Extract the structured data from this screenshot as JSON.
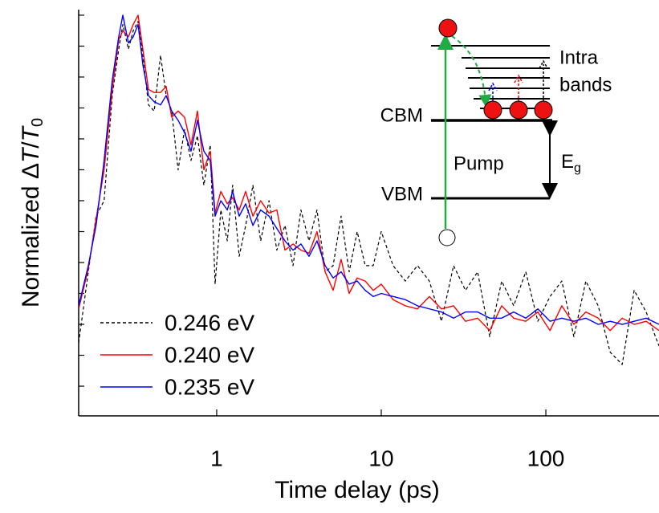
{
  "chart_data": {
    "type": "line",
    "xlabel": "Time delay (ps)",
    "ylabel": {
      "text": "Normalized Δ",
      "t1": "T",
      "slash": "/",
      "t2": "T",
      "sub": "0"
    },
    "xscale": "log",
    "xlim": [
      0.145,
      487
    ],
    "xticks": [
      1,
      10,
      100
    ],
    "ylim": [
      -0.296,
      1.018
    ],
    "yticks": [
      -0.2,
      -0.1,
      0,
      0.1,
      0.2,
      0.3,
      0.4,
      0.5,
      0.6,
      0.7,
      0.8,
      0.9,
      1.0
    ],
    "legend": "lower left",
    "x": [
      0.145,
      0.166,
      0.185,
      0.207,
      0.232,
      0.254,
      0.269,
      0.291,
      0.311,
      0.333,
      0.356,
      0.385,
      0.417,
      0.456,
      0.493,
      0.533,
      0.583,
      0.638,
      0.698,
      0.764,
      0.836,
      0.914,
      0.978,
      1.06,
      1.16,
      1.25,
      1.37,
      1.5,
      1.66,
      1.85,
      2.08,
      2.32,
      2.6,
      2.91,
      3.25,
      3.64,
      4.07,
      4.56,
      5.1,
      5.7,
      6.38,
      7.14,
      7.99,
      8.94,
      10.0,
      11.8,
      14.0,
      16.6,
      19.6,
      23.2,
      27.5,
      32.5,
      38.5,
      45.6,
      53.9,
      63.8,
      75.5,
      89.4,
      106,
      125,
      148,
      175,
      208,
      246,
      291,
      344,
      407,
      487
    ],
    "series": [
      {
        "name": "0.246 eV",
        "color": "#000000",
        "linestyle": "dashed",
        "values": [
          -0.06,
          0.17,
          0.35,
          0.4,
          0.74,
          0.89,
          0.97,
          0.89,
          0.95,
          0.98,
          0.87,
          0.71,
          0.69,
          0.87,
          0.74,
          0.69,
          0.5,
          0.63,
          0.53,
          0.61,
          0.45,
          0.58,
          0.13,
          0.37,
          0.27,
          0.45,
          0.22,
          0.32,
          0.45,
          0.27,
          0.4,
          0.24,
          0.32,
          0.19,
          0.37,
          0.27,
          0.37,
          0.17,
          0.19,
          0.35,
          0.17,
          0.3,
          0.19,
          0.19,
          0.3,
          0.19,
          0.14,
          0.19,
          0.14,
          0.01,
          0.19,
          0.11,
          0.17,
          -0.04,
          0.14,
          0.06,
          0.17,
          0.01,
          0.09,
          0.14,
          -0.04,
          0.14,
          0.06,
          -0.09,
          -0.13,
          0.11,
          0.04,
          -0.07
        ]
      },
      {
        "name": "0.240 eV",
        "color": "#ff0000",
        "linestyle": "solid",
        "values": [
          0.05,
          0.18,
          0.34,
          0.5,
          0.76,
          0.92,
          0.95,
          0.93,
          0.97,
          1.0,
          0.89,
          0.76,
          0.75,
          0.75,
          0.77,
          0.67,
          0.69,
          0.67,
          0.58,
          0.69,
          0.5,
          0.56,
          0.36,
          0.43,
          0.39,
          0.41,
          0.37,
          0.43,
          0.35,
          0.4,
          0.36,
          0.37,
          0.24,
          0.26,
          0.24,
          0.23,
          0.3,
          0.17,
          0.11,
          0.21,
          0.1,
          0.15,
          0.14,
          0.11,
          0.13,
          0.08,
          0.06,
          0.05,
          0.09,
          0.05,
          0.06,
          0.01,
          0.02,
          -0.02,
          0.06,
          0.02,
          0.01,
          0.04,
          -0.02,
          0.06,
          0.0,
          0.04,
          0.02,
          -0.02,
          0.02,
          0.0,
          0.01,
          -0.02
        ]
      },
      {
        "name": "0.235 eV",
        "color": "#0000ff",
        "linestyle": "solid",
        "values": [
          0.06,
          0.19,
          0.32,
          0.53,
          0.79,
          0.93,
          1.0,
          0.91,
          0.93,
          0.97,
          0.84,
          0.74,
          0.72,
          0.71,
          0.74,
          0.69,
          0.66,
          0.62,
          0.56,
          0.66,
          0.56,
          0.53,
          0.35,
          0.4,
          0.37,
          0.43,
          0.35,
          0.39,
          0.32,
          0.37,
          0.35,
          0.31,
          0.27,
          0.24,
          0.26,
          0.22,
          0.27,
          0.19,
          0.15,
          0.17,
          0.13,
          0.14,
          0.11,
          0.09,
          0.1,
          0.09,
          0.08,
          0.06,
          0.05,
          0.04,
          0.02,
          0.04,
          0.04,
          0.02,
          0.02,
          0.04,
          0.02,
          0.05,
          0.01,
          0.02,
          0.01,
          0.02,
          0.0,
          0.01,
          0.0,
          0.01,
          0.02,
          0.0
        ]
      }
    ],
    "inset": {
      "cbm": "CBM",
      "vbm": "VBM",
      "pump": "Pump",
      "intra": "Intra",
      "bands": "bands",
      "eg": "E",
      "eg_sub": "g"
    }
  }
}
